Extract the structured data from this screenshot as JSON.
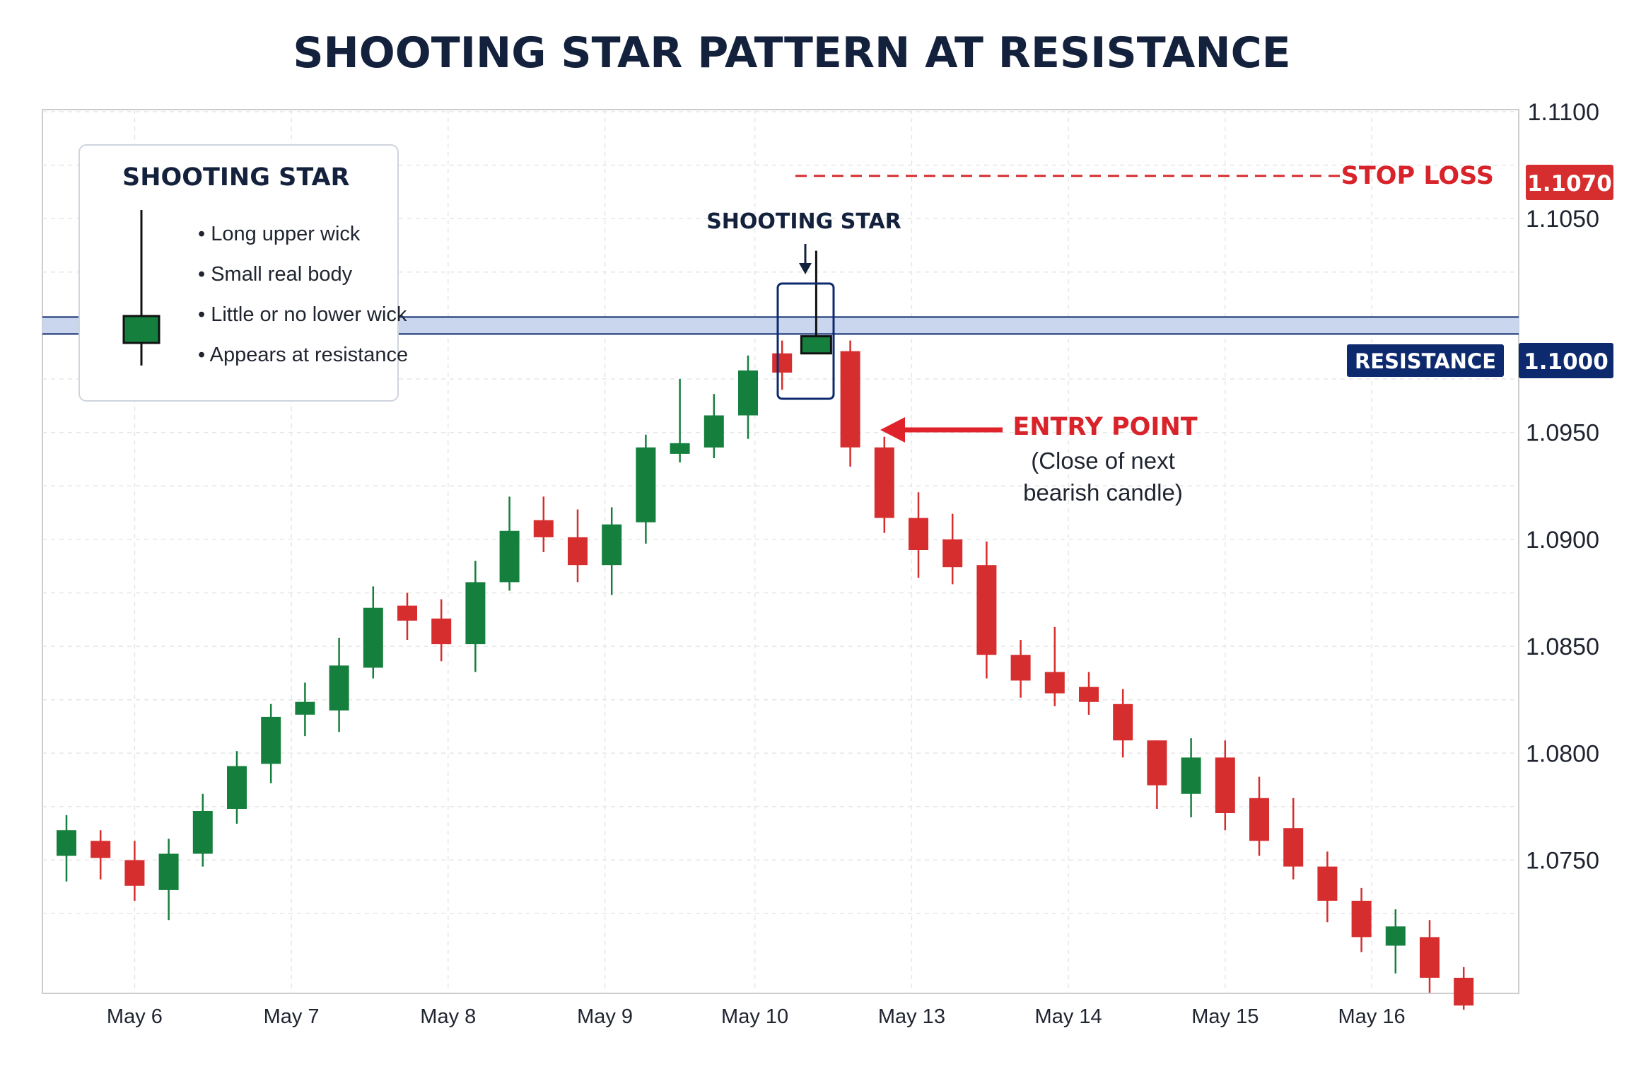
{
  "colors": {
    "bull": "#15803d",
    "bear": "#d62e2e",
    "navy": "#0d2a6e",
    "dark_text": "#14213d",
    "red_text": "#d8232a",
    "resistance_band": "#c9d6ee",
    "grid": "#e6e6e6",
    "frame": "#cccccc"
  },
  "chart_data": {
    "type": "candlestick",
    "title": "SHOOTING STAR PATTERN AT RESISTANCE",
    "ylim": [
      1.069,
      1.11
    ],
    "y_ticks": [
      "1.1100",
      "1.1050",
      "1.0950",
      "1.0900",
      "1.0850",
      "1.0800",
      "1.0750"
    ],
    "x_ticks": [
      {
        "label": "May 6",
        "index": 2
      },
      {
        "label": "May 7",
        "index": 6.6
      },
      {
        "label": "May 8",
        "index": 11.2
      },
      {
        "label": "May 9",
        "index": 15.8
      },
      {
        "label": "May 10",
        "index": 20.2
      },
      {
        "label": "May 13",
        "index": 24.8
      },
      {
        "label": "May 14",
        "index": 29.4
      },
      {
        "label": "May 15",
        "index": 34
      },
      {
        "label": "May 16",
        "index": 38.3
      }
    ],
    "grid": true,
    "candles": [
      {
        "o": 1.0752,
        "h": 1.0771,
        "l": 1.074,
        "c": 1.0764
      },
      {
        "o": 1.0759,
        "h": 1.0764,
        "l": 1.0741,
        "c": 1.0751
      },
      {
        "o": 1.075,
        "h": 1.0759,
        "l": 1.0731,
        "c": 1.0738
      },
      {
        "o": 1.0736,
        "h": 1.076,
        "l": 1.0722,
        "c": 1.0753
      },
      {
        "o": 1.0753,
        "h": 1.0781,
        "l": 1.0747,
        "c": 1.0773
      },
      {
        "o": 1.0774,
        "h": 1.0801,
        "l": 1.0767,
        "c": 1.0794
      },
      {
        "o": 1.0795,
        "h": 1.0823,
        "l": 1.0786,
        "c": 1.0817
      },
      {
        "o": 1.0818,
        "h": 1.0833,
        "l": 1.0808,
        "c": 1.0824
      },
      {
        "o": 1.082,
        "h": 1.0854,
        "l": 1.081,
        "c": 1.0841
      },
      {
        "o": 1.084,
        "h": 1.0878,
        "l": 1.0835,
        "c": 1.0868
      },
      {
        "o": 1.0869,
        "h": 1.0875,
        "l": 1.0853,
        "c": 1.0862
      },
      {
        "o": 1.0863,
        "h": 1.0872,
        "l": 1.0843,
        "c": 1.0851
      },
      {
        "o": 1.0851,
        "h": 1.089,
        "l": 1.0838,
        "c": 1.088
      },
      {
        "o": 1.088,
        "h": 1.092,
        "l": 1.0876,
        "c": 1.0904
      },
      {
        "o": 1.0909,
        "h": 1.092,
        "l": 1.0894,
        "c": 1.0901
      },
      {
        "o": 1.0901,
        "h": 1.0914,
        "l": 1.088,
        "c": 1.0888
      },
      {
        "o": 1.0888,
        "h": 1.0915,
        "l": 1.0874,
        "c": 1.0907
      },
      {
        "o": 1.0908,
        "h": 1.0949,
        "l": 1.0898,
        "c": 1.0943
      },
      {
        "o": 1.094,
        "h": 1.0975,
        "l": 1.0936,
        "c": 1.0945
      },
      {
        "o": 1.0943,
        "h": 1.0968,
        "l": 1.0938,
        "c": 1.0958
      },
      {
        "o": 1.0958,
        "h": 1.0986,
        "l": 1.0947,
        "c": 1.0979
      },
      {
        "o": 1.0987,
        "h": 1.0993,
        "l": 1.097,
        "c": 1.0978
      },
      {
        "o": 1.0987,
        "h": 1.1035,
        "l": 1.0987,
        "c": 1.0995
      },
      {
        "o": 1.0988,
        "h": 1.0993,
        "l": 1.0934,
        "c": 1.0943
      },
      {
        "o": 1.0943,
        "h": 1.0948,
        "l": 1.0903,
        "c": 1.091
      },
      {
        "o": 1.091,
        "h": 1.0922,
        "l": 1.0882,
        "c": 1.0895
      },
      {
        "o": 1.09,
        "h": 1.0912,
        "l": 1.0879,
        "c": 1.0887
      },
      {
        "o": 1.0888,
        "h": 1.0899,
        "l": 1.0835,
        "c": 1.0846
      },
      {
        "o": 1.0846,
        "h": 1.0853,
        "l": 1.0826,
        "c": 1.0834
      },
      {
        "o": 1.0838,
        "h": 1.0859,
        "l": 1.0822,
        "c": 1.0828
      },
      {
        "o": 1.0831,
        "h": 1.0838,
        "l": 1.0818,
        "c": 1.0824
      },
      {
        "o": 1.0823,
        "h": 1.083,
        "l": 1.0798,
        "c": 1.0806
      },
      {
        "o": 1.0806,
        "h": 1.0806,
        "l": 1.0774,
        "c": 1.0785
      },
      {
        "o": 1.0781,
        "h": 1.0807,
        "l": 1.077,
        "c": 1.0798
      },
      {
        "o": 1.0798,
        "h": 1.0806,
        "l": 1.0764,
        "c": 1.0772
      },
      {
        "o": 1.0779,
        "h": 1.0789,
        "l": 1.0752,
        "c": 1.0759
      },
      {
        "o": 1.0765,
        "h": 1.0779,
        "l": 1.0741,
        "c": 1.0747
      },
      {
        "o": 1.0747,
        "h": 1.0754,
        "l": 1.0721,
        "c": 1.0731
      },
      {
        "o": 1.0731,
        "h": 1.0737,
        "l": 1.0707,
        "c": 1.0714
      },
      {
        "o": 1.071,
        "h": 1.0727,
        "l": 1.0697,
        "c": 1.0719
      },
      {
        "o": 1.0714,
        "h": 1.0722,
        "l": 1.0688,
        "c": 1.0695
      },
      {
        "o": 1.0695,
        "h": 1.07,
        "l": 1.068,
        "c": 1.0682
      }
    ],
    "resistance": {
      "value": 1.1,
      "label": "RESISTANCE",
      "badge": "1.1000"
    },
    "stop_loss": {
      "value": 1.107,
      "label": "STOP LOSS",
      "badge": "1.1070"
    },
    "shooting_star": {
      "index": 22,
      "label": "SHOOTING STAR"
    },
    "entry": {
      "index": 23,
      "label": "ENTRY POINT",
      "note_lines": [
        "(Close of next",
        "bearish candle)"
      ]
    },
    "legend": {
      "title": "SHOOTING STAR",
      "items": [
        "Long upper wick",
        "Small real body",
        "Little or no lower wick",
        "Appears at resistance"
      ]
    }
  }
}
